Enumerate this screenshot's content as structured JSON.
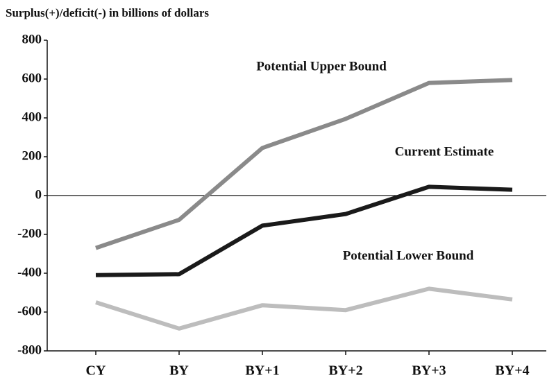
{
  "chart_data": {
    "type": "line",
    "title": "Surplus(+)/deficit(-) in billions of dollars",
    "categories": [
      "CY",
      "BY",
      "BY+1",
      "BY+2",
      "BY+3",
      "BY+4"
    ],
    "series": [
      {
        "name": "Potential Upper Bound",
        "color": "#8a8a8a",
        "values": [
          -270,
          -125,
          245,
          395,
          580,
          595
        ]
      },
      {
        "name": "Current Estimate",
        "color": "#1a1a1a",
        "values": [
          -410,
          -405,
          -155,
          -95,
          45,
          30
        ]
      },
      {
        "name": "Potential Lower Bound",
        "color": "#bdbdbd",
        "values": [
          -550,
          -685,
          -565,
          -590,
          -480,
          -535
        ]
      }
    ],
    "ylim": [
      -800,
      800
    ],
    "yticks": [
      -800,
      -600,
      -400,
      -200,
      0,
      200,
      400,
      600,
      800
    ]
  }
}
